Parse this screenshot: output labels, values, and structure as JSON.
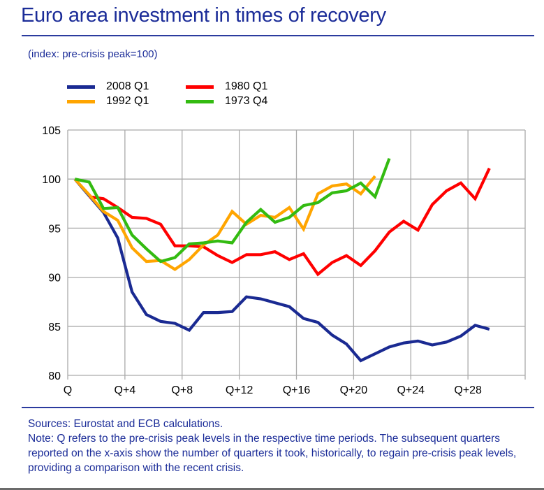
{
  "header": {
    "title": "Euro area investment in times of recovery",
    "subtitle": "(index: pre-crisis peak=100)"
  },
  "footer": {
    "sources": "Sources: Eurostat and ECB calculations.",
    "note": "Note: Q refers to the pre-crisis peak levels in the respective time periods. The subsequent quarters reported on the x-axis show the number of quarters it took, historically, to regain pre-crisis peak levels, providing a comparison with the recent crisis."
  },
  "chart_data": {
    "type": "line",
    "title": "Euro area investment in times of recovery",
    "subtitle": "(index: pre-crisis peak=100)",
    "xlabel": "",
    "ylabel": "",
    "x_categories_count": 32,
    "x_tick_labels": [
      "Q",
      "Q+4",
      "Q+8",
      "Q+12",
      "Q+16",
      "Q+20",
      "Q+24",
      "Q+28"
    ],
    "x_tick_step": 4,
    "y_tick_labels": [
      "80",
      "85",
      "90",
      "95",
      "100",
      "105"
    ],
    "ylim": [
      80,
      105
    ],
    "y_tick_step": 5,
    "grid": true,
    "legend_position": "top-left",
    "series": [
      {
        "name": "2008 Q1",
        "color": "#1a2a92",
        "start": 0,
        "values": [
          100,
          98.3,
          96.6,
          94.0,
          88.5,
          86.2,
          85.5,
          85.3,
          84.6,
          86.4,
          86.4,
          86.5,
          88.0,
          87.8,
          87.4,
          87.0,
          85.8,
          85.4,
          84.1,
          83.2,
          81.5,
          82.2,
          82.9,
          83.3,
          83.5,
          83.1,
          83.4,
          84.0,
          85.1,
          84.7
        ]
      },
      {
        "name": "1980 Q1",
        "color": "#ff0000",
        "start": 1,
        "values": [
          98.2,
          98.0,
          97.1,
          96.1,
          96.0,
          95.4,
          93.2,
          93.2,
          93.1,
          92.2,
          91.5,
          92.3,
          92.3,
          92.6,
          91.8,
          92.4,
          90.3,
          91.5,
          92.2,
          91.2,
          92.7,
          94.6,
          95.7,
          94.8,
          97.4,
          98.8,
          99.6,
          98.0,
          101.1
        ]
      },
      {
        "name": "1992 Q1",
        "color": "#ffa500",
        "start": 0,
        "values": [
          100,
          98.4,
          96.7,
          95.8,
          93.0,
          91.6,
          91.7,
          90.8,
          91.8,
          93.3,
          94.3,
          96.7,
          95.4,
          96.3,
          96.1,
          97.1,
          94.9,
          98.5,
          99.3,
          99.5,
          98.5,
          100.3
        ]
      },
      {
        "name": "1973 Q4",
        "color": "#33bb11",
        "start": 0,
        "values": [
          100,
          99.7,
          97.0,
          97.1,
          94.3,
          92.9,
          91.6,
          92.0,
          93.4,
          93.5,
          93.7,
          93.5,
          95.6,
          96.9,
          95.6,
          96.1,
          97.3,
          97.6,
          98.6,
          98.8,
          99.6,
          98.2,
          102.1
        ]
      }
    ]
  }
}
